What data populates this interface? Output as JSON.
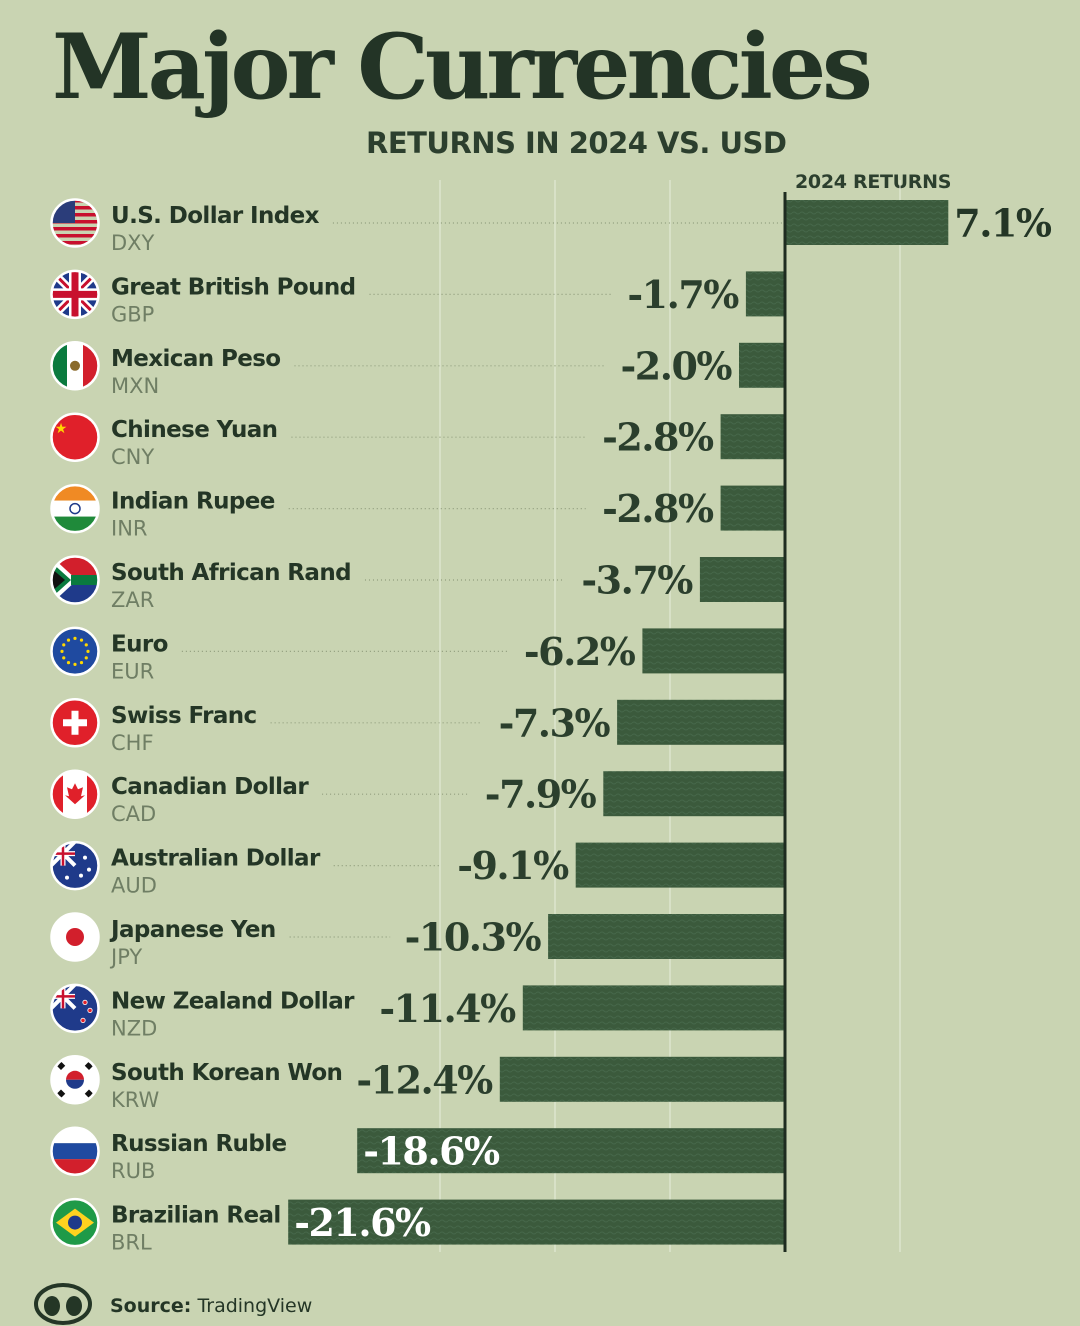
{
  "title": "Major Currencies",
  "subtitle": "RETURNS IN 2024 VS. USD",
  "column_header": "2024 RETURNS",
  "source_label": "Source:",
  "source_value": "TradingView",
  "colors": {
    "background": "#c9d4b2",
    "bar": "#3b5a3c",
    "text": "#243626",
    "grid": "#e8eedc"
  },
  "chart_data": {
    "type": "bar",
    "orientation": "horizontal",
    "title": "Major Currencies",
    "subtitle": "RETURNS IN 2024 VS. USD",
    "value_header": "2024 RETURNS",
    "xlim": [
      -24,
      10
    ],
    "grid": true,
    "categories": [
      {
        "name": "U.S. Dollar Index",
        "code": "DXY",
        "flag": "us-flag-icon",
        "value": 7.1,
        "label": "7.1%"
      },
      {
        "name": "Great British Pound",
        "code": "GBP",
        "flag": "uk-flag-icon",
        "value": -1.7,
        "label": "-1.7%"
      },
      {
        "name": "Mexican Peso",
        "code": "MXN",
        "flag": "mexico-flag-icon",
        "value": -2.0,
        "label": "-2.0%"
      },
      {
        "name": "Chinese Yuan",
        "code": "CNY",
        "flag": "china-flag-icon",
        "value": -2.8,
        "label": "-2.8%"
      },
      {
        "name": "Indian Rupee",
        "code": "INR",
        "flag": "india-flag-icon",
        "value": -2.8,
        "label": "-2.8%"
      },
      {
        "name": "South African Rand",
        "code": "ZAR",
        "flag": "south-africa-flag-icon",
        "value": -3.7,
        "label": "-3.7%"
      },
      {
        "name": "Euro",
        "code": "EUR",
        "flag": "eu-flag-icon",
        "value": -6.2,
        "label": "-6.2%"
      },
      {
        "name": "Swiss Franc",
        "code": "CHF",
        "flag": "switzerland-flag-icon",
        "value": -7.3,
        "label": "-7.3%"
      },
      {
        "name": "Canadian Dollar",
        "code": "CAD",
        "flag": "canada-flag-icon",
        "value": -7.9,
        "label": "-7.9%"
      },
      {
        "name": "Australian Dollar",
        "code": "AUD",
        "flag": "australia-flag-icon",
        "value": -9.1,
        "label": "-9.1%"
      },
      {
        "name": "Japanese Yen",
        "code": "JPY",
        "flag": "japan-flag-icon",
        "value": -10.3,
        "label": "-10.3%"
      },
      {
        "name": "New Zealand Dollar",
        "code": "NZD",
        "flag": "new-zealand-flag-icon",
        "value": -11.4,
        "label": "-11.4%"
      },
      {
        "name": "South Korean Won",
        "code": "KRW",
        "flag": "south-korea-flag-icon",
        "value": -12.4,
        "label": "-12.4%"
      },
      {
        "name": "Russian Ruble",
        "code": "RUB",
        "flag": "russia-flag-icon",
        "value": -18.6,
        "label": "-18.6%"
      },
      {
        "name": "Brazilian Real",
        "code": "BRL",
        "flag": "brazil-flag-icon",
        "value": -21.6,
        "label": "-21.6%"
      }
    ]
  }
}
